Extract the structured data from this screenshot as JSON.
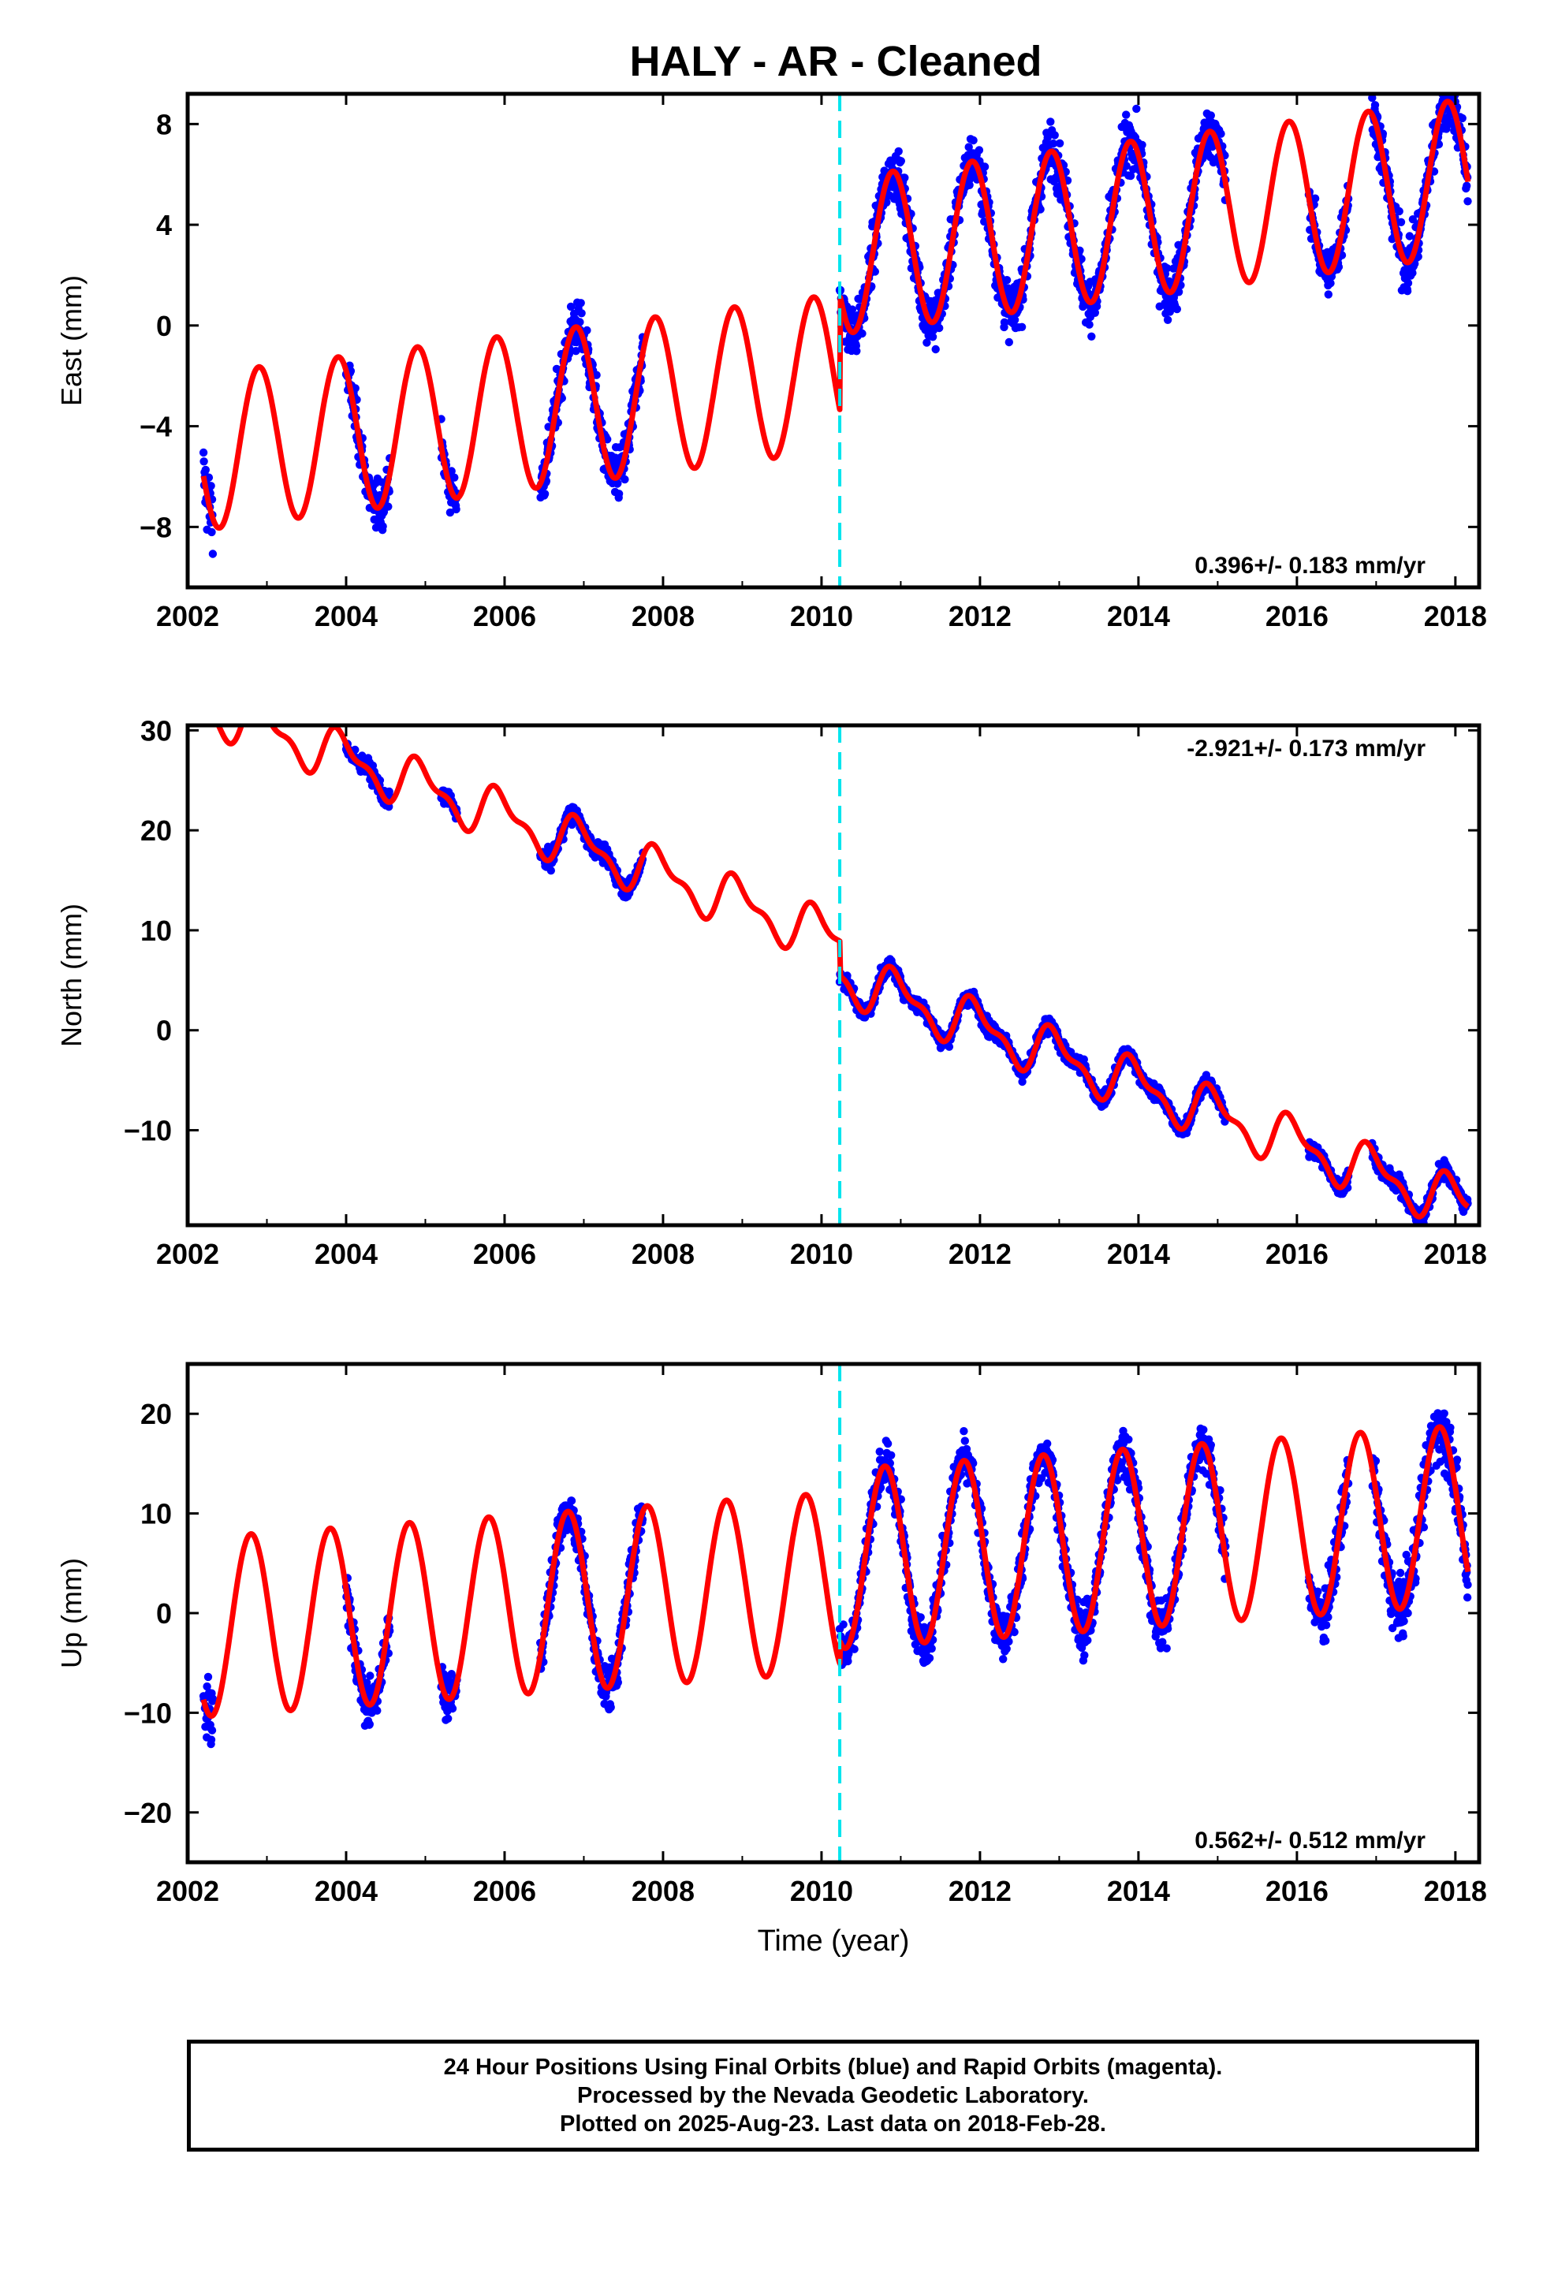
{
  "title": "HALY  - AR - Cleaned",
  "footer": {
    "line1": "24 Hour Positions Using Final Orbits (blue) and Rapid Orbits (magenta).",
    "line2": "Processed by the Nevada Geodetic Laboratory.",
    "line3": "Plotted on 2025-Aug-23. Last data on 2018-Feb-28."
  },
  "colors": {
    "data": "#0000ff",
    "model": "#ff0000",
    "event": "#00e5ee",
    "frame": "#000000"
  },
  "chart_data": [
    {
      "type": "scatter",
      "component": "East",
      "ylabel": "East (mm)",
      "xlabel": "",
      "xlim": [
        2002,
        2018.3
      ],
      "ylim": [
        -10.4,
        9.2
      ],
      "xticks": [
        2002,
        2004,
        2006,
        2008,
        2010,
        2012,
        2014,
        2016,
        2018
      ],
      "yticks": [
        8,
        4,
        0,
        -4,
        -8
      ],
      "ytick_labels": [
        "8",
        "4",
        "0",
        "−4",
        "−8"
      ],
      "rate_label": "0.396+/- 0.183 mm/yr",
      "rate_position": "bottom-right",
      "event_lines": [
        2010.23
      ],
      "model": {
        "offset_before": -5.1,
        "offset_after": -0.5,
        "rate": 0.396,
        "annual_amp": 3.1,
        "annual_phase": 2002.65,
        "semiannual_amp": 0.0
      },
      "observation_segments": [
        {
          "start": 2002.2,
          "end": 2002.32,
          "scatter": 1.8
        },
        {
          "start": 2004.0,
          "end": 2004.55,
          "scatter": 1.2
        },
        {
          "start": 2005.2,
          "end": 2005.4,
          "scatter": 1.0
        },
        {
          "start": 2006.45,
          "end": 2007.75,
          "scatter": 1.3
        },
        {
          "start": 2010.23,
          "end": 2015.1,
          "scatter": 1.3
        },
        {
          "start": 2016.15,
          "end": 2016.65,
          "scatter": 1.2
        },
        {
          "start": 2016.95,
          "end": 2018.16,
          "scatter": 1.4
        }
      ]
    },
    {
      "type": "scatter",
      "component": "North",
      "ylabel": "North (mm)",
      "xlabel": "",
      "xlim": [
        2002,
        2018.3
      ],
      "ylim": [
        -19.5,
        30.5
      ],
      "xticks": [
        2002,
        2004,
        2006,
        2008,
        2010,
        2012,
        2014,
        2016,
        2018
      ],
      "yticks": [
        30,
        20,
        10,
        0,
        -10
      ],
      "ytick_labels": [
        "30",
        "20",
        "10",
        "0",
        "−10"
      ],
      "rate_label": "-2.921+/- 0.173 mm/yr",
      "rate_position": "top-right",
      "event_lines": [
        2010.23
      ],
      "model": {
        "offset_before": 33.0,
        "offset_after": 29.5,
        "rate": -2.921,
        "annual_amp": 2.2,
        "annual_phase": 2002.7,
        "semiannual_amp": 1.0
      },
      "observation_segments": [
        {
          "start": 2002.2,
          "end": 2002.32,
          "scatter": 1.0
        },
        {
          "start": 2004.0,
          "end": 2004.55,
          "scatter": 1.1
        },
        {
          "start": 2005.2,
          "end": 2005.4,
          "scatter": 1.0
        },
        {
          "start": 2006.45,
          "end": 2007.75,
          "scatter": 1.1
        },
        {
          "start": 2010.23,
          "end": 2015.1,
          "scatter": 1.0
        },
        {
          "start": 2016.15,
          "end": 2016.65,
          "scatter": 1.0
        },
        {
          "start": 2016.95,
          "end": 2018.16,
          "scatter": 1.1
        }
      ]
    },
    {
      "type": "scatter",
      "component": "Up",
      "ylabel": "Up (mm)",
      "xlabel": "Time (year)",
      "xlim": [
        2002,
        2018.3
      ],
      "ylim": [
        -25,
        25
      ],
      "xticks": [
        2002,
        2004,
        2006,
        2008,
        2010,
        2012,
        2014,
        2016,
        2018
      ],
      "yticks": [
        20,
        10,
        0,
        -10,
        -20
      ],
      "ytick_labels": [
        "20",
        "10",
        "0",
        "−10",
        "−20"
      ],
      "rate_label": "0.562+/- 0.512 mm/yr",
      "rate_position": "bottom-right",
      "event_lines": [
        2010.23
      ],
      "model": {
        "offset_before": -1.5,
        "offset_after": 0.8,
        "rate": 0.562,
        "annual_amp": 9.0,
        "annual_phase": 2002.55,
        "semiannual_amp": 0.0
      },
      "observation_segments": [
        {
          "start": 2002.2,
          "end": 2002.32,
          "scatter": 3.5
        },
        {
          "start": 2004.0,
          "end": 2004.55,
          "scatter": 3.0
        },
        {
          "start": 2005.2,
          "end": 2005.4,
          "scatter": 2.5
        },
        {
          "start": 2006.45,
          "end": 2007.75,
          "scatter": 3.0
        },
        {
          "start": 2010.23,
          "end": 2015.1,
          "scatter": 3.0
        },
        {
          "start": 2016.15,
          "end": 2016.65,
          "scatter": 3.5
        },
        {
          "start": 2016.95,
          "end": 2018.16,
          "scatter": 4.0
        }
      ]
    }
  ]
}
